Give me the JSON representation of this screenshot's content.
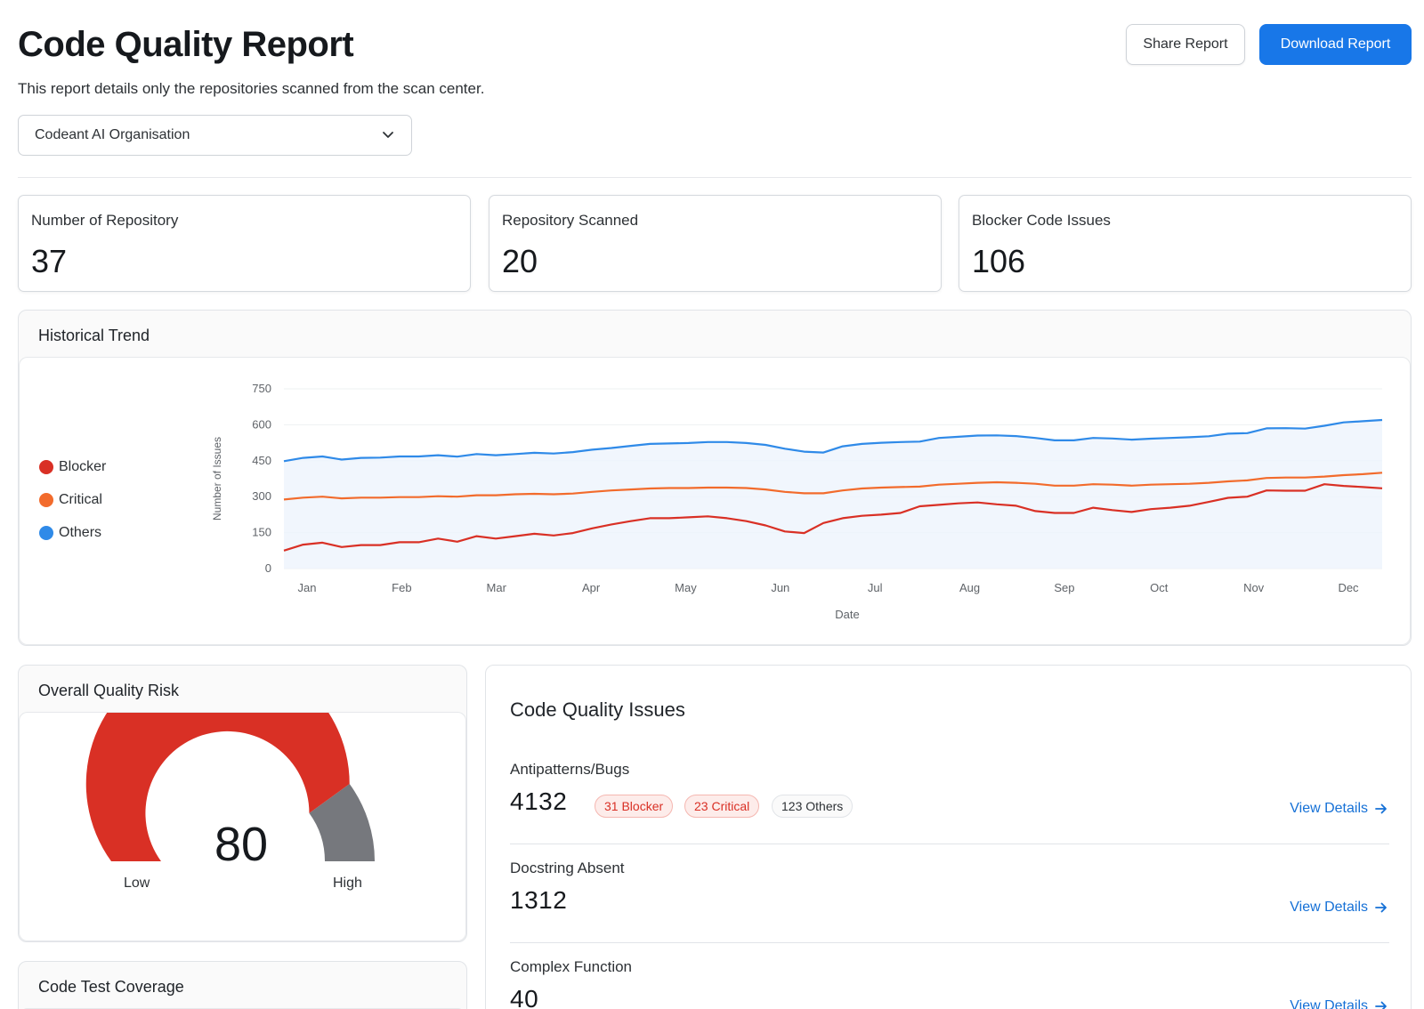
{
  "header": {
    "title": "Code Quality Report",
    "subtitle": "This report details only the repositories scanned from the scan center.",
    "share_label": "Share Report",
    "download_label": "Download Report"
  },
  "org_select": {
    "value": "Codeant AI Organisation"
  },
  "stats": [
    {
      "label": "Number of Repository",
      "value": "37"
    },
    {
      "label": "Repository Scanned",
      "value": "20"
    },
    {
      "label": "Blocker Code Issues",
      "value": "106"
    }
  ],
  "trend": {
    "title": "Historical Trend",
    "legend": [
      {
        "name": "Blocker",
        "color": "#d93025"
      },
      {
        "name": "Critical",
        "color": "#f26b2c"
      },
      {
        "name": "Others",
        "color": "#2f8ae8"
      }
    ]
  },
  "chart_data": {
    "type": "line",
    "title": "Historical Trend",
    "xlabel": "Date",
    "ylabel": "Number of Issues",
    "ylim": [
      0,
      750
    ],
    "yticks": [
      "0",
      "150",
      "300",
      "450",
      "600",
      "750"
    ],
    "xticks": [
      "Jan",
      "Feb",
      "Mar",
      "Apr",
      "May",
      "Jun",
      "Jul",
      "Aug",
      "Sep",
      "Oct",
      "Nov",
      "Dec"
    ],
    "x": [
      0,
      0.2,
      0.4,
      0.6,
      0.8,
      1.0,
      1.2,
      1.4,
      1.6,
      1.8,
      2.0,
      2.2,
      2.4,
      2.6,
      2.8,
      3.0,
      3.2,
      3.4,
      3.6,
      3.8,
      4.0,
      4.2,
      4.4,
      4.6,
      4.8,
      5.0,
      5.2,
      5.4,
      5.6,
      5.8,
      6.0,
      6.2,
      6.4,
      6.6,
      6.8,
      7.0,
      7.2,
      7.4,
      7.6,
      7.8,
      8.0,
      8.2,
      8.4,
      8.6,
      8.8,
      9.0,
      9.2,
      9.4,
      9.6,
      9.8,
      10.0,
      10.2,
      10.4,
      10.6,
      10.8,
      11.0,
      11.2,
      11.4
    ],
    "series": [
      {
        "name": "Others",
        "color": "#2f8ae8",
        "values": [
          448,
          462,
          468,
          455,
          462,
          463,
          468,
          468,
          473,
          467,
          478,
          473,
          478,
          483,
          480,
          486,
          496,
          503,
          512,
          520,
          522,
          524,
          528,
          528,
          524,
          516,
          500,
          488,
          484,
          510,
          520,
          525,
          528,
          530,
          545,
          550,
          555,
          556,
          553,
          545,
          535,
          535,
          545,
          543,
          538,
          542,
          545,
          548,
          552,
          563,
          565,
          585,
          586,
          584,
          596,
          610,
          615,
          620
        ]
      },
      {
        "name": "Critical",
        "color": "#f26b2c",
        "values": [
          288,
          296,
          300,
          293,
          296,
          296,
          298,
          298,
          302,
          300,
          306,
          306,
          310,
          312,
          310,
          313,
          320,
          326,
          330,
          334,
          336,
          336,
          338,
          338,
          336,
          330,
          320,
          314,
          314,
          326,
          334,
          338,
          340,
          342,
          350,
          354,
          358,
          360,
          358,
          354,
          346,
          346,
          352,
          350,
          346,
          350,
          352,
          354,
          358,
          364,
          368,
          378,
          380,
          380,
          384,
          390,
          394,
          400
        ]
      },
      {
        "name": "Blocker",
        "color": "#d93025",
        "values": [
          75,
          100,
          108,
          90,
          98,
          98,
          110,
          110,
          125,
          112,
          135,
          125,
          135,
          145,
          138,
          148,
          168,
          184,
          198,
          210,
          210,
          214,
          218,
          210,
          198,
          180,
          155,
          148,
          190,
          210,
          220,
          225,
          232,
          260,
          266,
          272,
          276,
          268,
          262,
          240,
          232,
          232,
          254,
          244,
          236,
          248,
          254,
          262,
          278,
          295,
          300,
          326,
          325,
          325,
          352,
          345,
          340,
          335
        ]
      }
    ]
  },
  "risk": {
    "title": "Overall Quality Risk",
    "value": 80,
    "value_label": "80",
    "low_label": "Low",
    "high_label": "High",
    "fill_color": "#d93025",
    "rest_color": "#76787d"
  },
  "coverage": {
    "title": "Code Test Coverage"
  },
  "code_quality": {
    "title": "Code Quality Issues",
    "view_details_label": "View Details",
    "items": [
      {
        "name": "Antipatterns/Bugs",
        "count": "4132",
        "badges": {
          "blocker": "31 Blocker",
          "critical": "23 Critical",
          "others": "123 Others"
        }
      },
      {
        "name": "Docstring Absent",
        "count": "1312"
      },
      {
        "name": "Complex Function",
        "count": "40"
      }
    ]
  }
}
